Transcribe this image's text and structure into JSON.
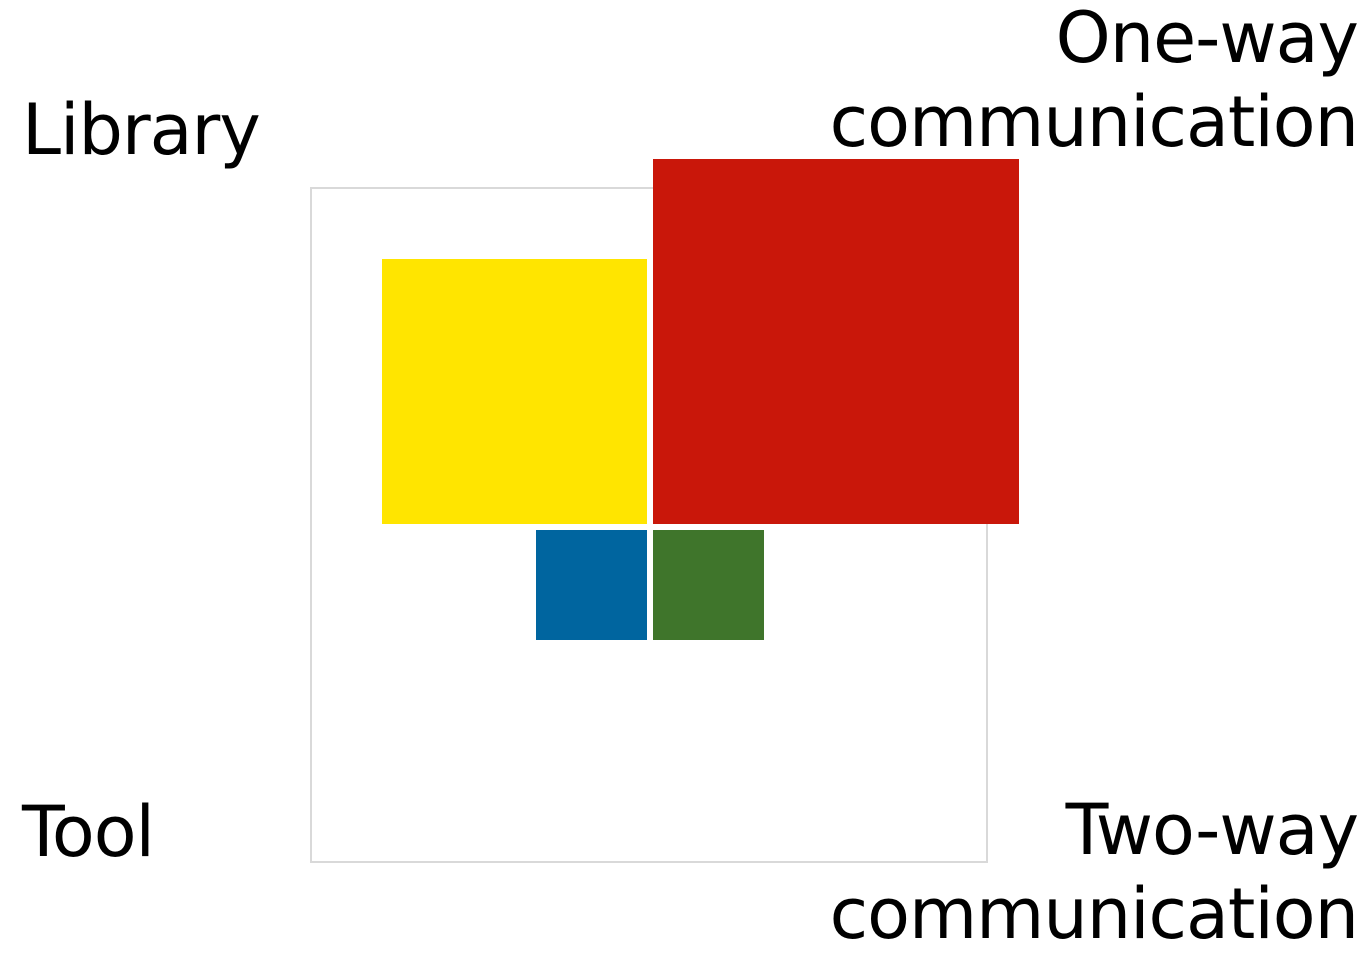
{
  "labels": {
    "top_left": "Library",
    "bottom_left": "Tool",
    "top_right": [
      "One-way",
      "communication"
    ],
    "bottom_right": [
      "Two-way",
      "communication"
    ]
  },
  "colors": {
    "frame": "#d9d9d9",
    "yellow": "#ffe500",
    "red": "#c9170a",
    "blue": "#00659f",
    "green": "#3f752b"
  },
  "blocks": [
    {
      "name": "yellow-block",
      "color": "#ffe500"
    },
    {
      "name": "red-block",
      "color": "#c9170a"
    },
    {
      "name": "blue-block",
      "color": "#00659f"
    },
    {
      "name": "green-block",
      "color": "#3f752b"
    }
  ]
}
